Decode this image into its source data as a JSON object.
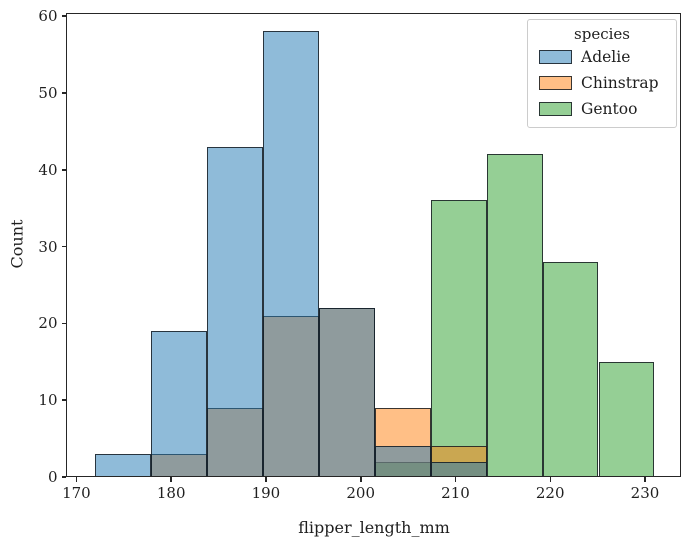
{
  "figure": {
    "background": "#ffffff",
    "text_color": "#1f1f1f"
  },
  "chart_data": {
    "type": "bar",
    "subtype": "layered-histogram",
    "title": "",
    "xlabel": "flipper_length_mm",
    "ylabel": "Count",
    "bin_edges": [
      172.0,
      177.9,
      183.8,
      189.7,
      195.6,
      201.5,
      207.4,
      213.3,
      219.2,
      225.1,
      231.0
    ],
    "series": [
      {
        "name": "Adelie",
        "color": "#1f77b4",
        "values": [
          3,
          19,
          43,
          58,
          22,
          4,
          2,
          0,
          0,
          0
        ]
      },
      {
        "name": "Chinstrap",
        "color": "#ff7f0e",
        "values": [
          0,
          3,
          9,
          21,
          22,
          9,
          4,
          0,
          0,
          0
        ]
      },
      {
        "name": "Gentoo",
        "color": "#2ca02c",
        "values": [
          0,
          0,
          0,
          0,
          0,
          2,
          36,
          42,
          28,
          15
        ]
      }
    ],
    "bar_alpha": 0.5,
    "edge_color": "#161c22",
    "edge_alpha": 0.85,
    "x_ticks": [
      170,
      180,
      190,
      200,
      210,
      220,
      230
    ],
    "y_ticks": [
      0,
      10,
      20,
      30,
      40,
      50,
      60
    ],
    "xlim": [
      168.9,
      233.8
    ],
    "ylim": [
      0,
      60.4
    ],
    "grid": false,
    "legend": {
      "title": "species",
      "position": "upper right",
      "entries": [
        "Adelie",
        "Chinstrap",
        "Gentoo"
      ]
    },
    "layer_order_top_to_bottom": [
      "Adelie",
      "Chinstrap",
      "Gentoo"
    ]
  }
}
